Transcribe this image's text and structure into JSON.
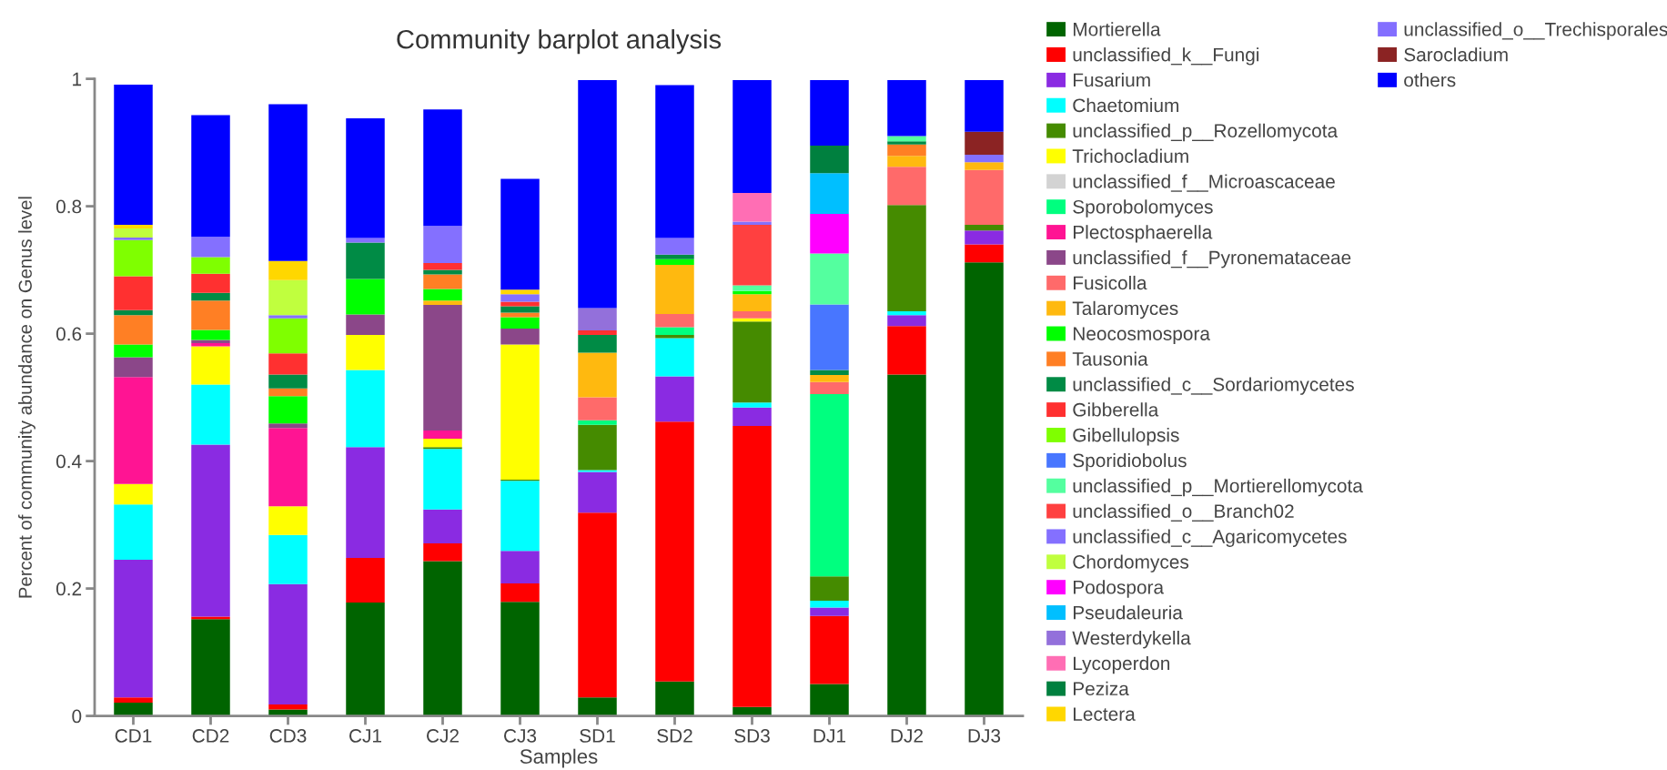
{
  "chart_data": {
    "type": "bar",
    "stacked": true,
    "title": "Community barplot analysis",
    "xlabel": "Samples",
    "ylabel": "Percent of community abundance on Genus level",
    "categories": [
      "CD1",
      "CD2",
      "CD3",
      "CJ1",
      "CJ2",
      "CJ3",
      "SD1",
      "SD2",
      "SD3",
      "DJ1",
      "DJ2",
      "DJ3"
    ],
    "ylim": [
      0,
      1
    ],
    "yticks": [
      0,
      0.2,
      0.4,
      0.6,
      0.8,
      1
    ],
    "legend": "right",
    "series": [
      {
        "name": "Mortierella",
        "color": "#006400",
        "values": [
          0.021,
          0.152,
          0.01,
          0.178,
          0.243,
          0.179,
          0.029,
          0.054,
          0.014,
          0.05,
          0.536,
          0.712
        ]
      },
      {
        "name": "unclassified_k__Fungi",
        "color": "#ff0000",
        "values": [
          0.008,
          0.004,
          0.008,
          0.07,
          0.028,
          0.029,
          0.29,
          0.408,
          0.441,
          0.107,
          0.076,
          0.028
        ]
      },
      {
        "name": "Fusarium",
        "color": "#8a2be2",
        "values": [
          0.216,
          0.27,
          0.189,
          0.174,
          0.053,
          0.051,
          0.064,
          0.071,
          0.029,
          0.013,
          0.017,
          0.022
        ]
      },
      {
        "name": "Chaetomium",
        "color": "#00ffff",
        "values": [
          0.087,
          0.094,
          0.077,
          0.121,
          0.095,
          0.11,
          0.003,
          0.06,
          0.008,
          0.011,
          0.006,
          null
        ]
      },
      {
        "name": "unclassified_p__Rozellomycota",
        "color": "#458b00",
        "values": [
          null,
          null,
          null,
          null,
          0.003,
          0.002,
          0.071,
          0.005,
          0.127,
          0.038,
          0.167,
          0.009
        ]
      },
      {
        "name": "Trichocladium",
        "color": "#ffff00",
        "values": [
          0.032,
          0.06,
          0.045,
          0.055,
          0.013,
          0.212,
          null,
          null,
          0.005,
          null,
          null,
          null
        ]
      },
      {
        "name": "unclassified_f__Microascaceae",
        "color": "#d3d3d3",
        "values": [
          null,
          null,
          null,
          null,
          null,
          null,
          null,
          null,
          null,
          null,
          null,
          null
        ]
      },
      {
        "name": "Sporobolomyces",
        "color": "#00ff7f",
        "values": [
          null,
          null,
          null,
          null,
          null,
          null,
          0.007,
          0.012,
          null,
          0.286,
          null,
          null
        ]
      },
      {
        "name": "Plectosphaerella",
        "color": "#ff1493",
        "values": [
          0.168,
          0.005,
          0.123,
          null,
          0.013,
          null,
          null,
          null,
          null,
          null,
          null,
          null
        ]
      },
      {
        "name": "unclassified_f__Pyronemataceae",
        "color": "#8b4789",
        "values": [
          0.031,
          0.005,
          0.007,
          0.032,
          0.197,
          0.025,
          null,
          null,
          null,
          null,
          null,
          null
        ]
      },
      {
        "name": "Fusicolla",
        "color": "#ff6a6a",
        "values": [
          null,
          null,
          null,
          null,
          null,
          null,
          0.036,
          0.021,
          0.011,
          0.019,
          0.06,
          0.086
        ]
      },
      {
        "name": "Talaromyces",
        "color": "#ffb90f",
        "values": [
          null,
          null,
          null,
          null,
          0.007,
          null,
          0.07,
          0.077,
          0.027,
          0.011,
          0.017,
          0.012
        ]
      },
      {
        "name": "Neocosmospora",
        "color": "#00ff00",
        "values": [
          0.02,
          0.016,
          0.043,
          0.056,
          0.018,
          0.018,
          null,
          0.009,
          0.005,
          null,
          null,
          null
        ]
      },
      {
        "name": "Tausonia",
        "color": "#ff7f24",
        "values": [
          0.046,
          0.046,
          0.012,
          null,
          0.023,
          0.007,
          null,
          null,
          null,
          null,
          0.018,
          null
        ]
      },
      {
        "name": "unclassified_c__Sordariomycetes",
        "color": "#008b45",
        "values": [
          0.008,
          0.012,
          0.022,
          0.057,
          0.007,
          0.01,
          0.028,
          0.007,
          null,
          0.008,
          0.005,
          null
        ]
      },
      {
        "name": "Gibberella",
        "color": "#ff3030",
        "values": [
          0.053,
          0.03,
          0.033,
          null,
          0.011,
          0.007,
          0.007,
          null,
          null,
          null,
          null,
          null
        ]
      },
      {
        "name": "Gibellulopsis",
        "color": "#7fff00",
        "values": [
          0.057,
          0.026,
          0.055,
          null,
          null,
          null,
          null,
          null,
          null,
          null,
          null,
          null
        ]
      },
      {
        "name": "Sporidiobolus",
        "color": "#4876ff",
        "values": [
          null,
          null,
          null,
          null,
          null,
          null,
          null,
          null,
          null,
          0.103,
          null,
          null
        ]
      },
      {
        "name": "unclassified_p__Mortierellomycota",
        "color": "#54ff9f",
        "values": [
          null,
          null,
          null,
          null,
          null,
          null,
          null,
          null,
          0.009,
          0.08,
          0.008,
          null
        ]
      },
      {
        "name": "unclassified_o__Branch02",
        "color": "#ff4040",
        "values": [
          null,
          null,
          null,
          null,
          null,
          null,
          null,
          null,
          0.095,
          null,
          null,
          null
        ]
      },
      {
        "name": "unclassified_c__Agaricomycetes",
        "color": "#8470ff",
        "values": [
          0.004,
          0.032,
          0.005,
          0.007,
          0.058,
          0.012,
          null,
          0.026,
          0.005,
          null,
          null,
          null
        ]
      },
      {
        "name": "Chordomyces",
        "color": "#c0ff3e",
        "values": [
          0.014,
          null,
          0.055,
          null,
          null,
          null,
          null,
          null,
          null,
          null,
          null,
          null
        ]
      },
      {
        "name": "Podospora",
        "color": "#ff00ff",
        "values": [
          null,
          null,
          null,
          null,
          null,
          null,
          null,
          null,
          null,
          0.062,
          null,
          null
        ]
      },
      {
        "name": "Pseudaleuria",
        "color": "#00bfff",
        "values": [
          null,
          null,
          null,
          null,
          null,
          null,
          null,
          null,
          null,
          0.064,
          null,
          null
        ]
      },
      {
        "name": "Westerdykella",
        "color": "#9370db",
        "values": [
          null,
          null,
          null,
          null,
          null,
          null,
          0.035,
          null,
          null,
          null,
          null,
          null
        ]
      },
      {
        "name": "Lycoperdon",
        "color": "#ff6eb4",
        "values": [
          null,
          null,
          null,
          null,
          null,
          null,
          null,
          null,
          0.045,
          null,
          null,
          null
        ]
      },
      {
        "name": "Peziza",
        "color": "#00803f",
        "values": [
          null,
          null,
          null,
          null,
          null,
          null,
          null,
          null,
          null,
          0.043,
          null,
          null
        ]
      },
      {
        "name": "Lectera",
        "color": "#ffd700",
        "values": [
          0.006,
          null,
          0.03,
          null,
          null,
          0.007,
          null,
          null,
          null,
          null,
          null,
          null
        ]
      },
      {
        "name": "unclassified_o__Trechisporales",
        "color": "#836fff",
        "values": [
          null,
          null,
          null,
          null,
          null,
          null,
          null,
          null,
          null,
          null,
          null,
          0.012
        ]
      },
      {
        "name": "Sarocladium",
        "color": "#8b2323",
        "values": [
          null,
          null,
          null,
          null,
          null,
          null,
          null,
          null,
          null,
          null,
          null,
          0.036
        ]
      },
      {
        "name": "others",
        "color": "#0000ff",
        "values": [
          0.22,
          0.191,
          0.246,
          0.188,
          0.183,
          0.174,
          0.358,
          0.24,
          0.177,
          0.103,
          0.088,
          0.081
        ]
      }
    ]
  }
}
